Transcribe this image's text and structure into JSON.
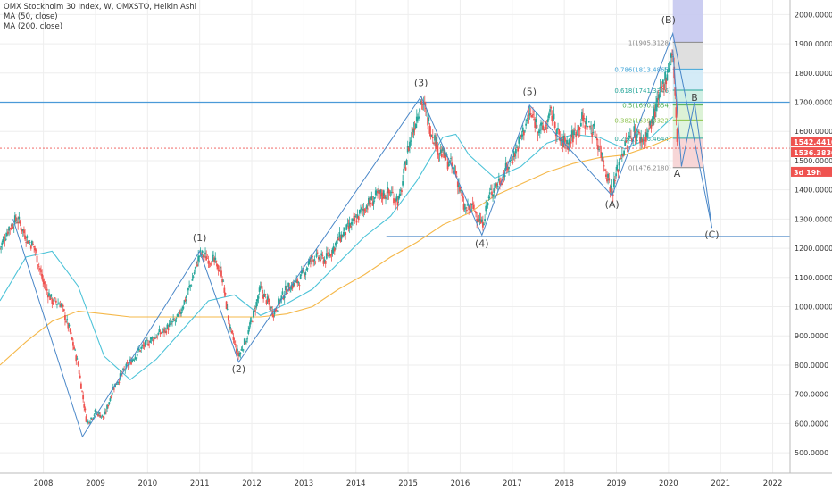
{
  "legend": {
    "title": "OMX Stockholm 30 Index, W, OMXSTO, Heikin Ashi",
    "ma50": "MA (50, close)",
    "ma200": "MA (200, close)"
  },
  "colors": {
    "up": "#26a69a",
    "down": "#ef5350",
    "ma50": "#4dc3d8",
    "ma200": "#f5b84a",
    "wave": "#4a87c8",
    "resistance": "#4a9ad8",
    "support": "#4a87c8",
    "price_line": "#ef5350",
    "axis_text": "#333333",
    "grid": "#eeeeee"
  },
  "chart_data": {
    "type": "candlestick",
    "xlim": [
      "2007-03",
      "2022-05"
    ],
    "ylim": [
      430,
      2050
    ],
    "x_ticks": [
      "2008",
      "2009",
      "2010",
      "2011",
      "2012",
      "2013",
      "2014",
      "2015",
      "2016",
      "2017",
      "2018",
      "2019",
      "2020",
      "2021",
      "2022"
    ],
    "y_ticks": [
      "500.0000",
      "600.0000",
      "700.0000",
      "800.0000",
      "900.0000",
      "1000.0000",
      "1100.0000",
      "1200.0000",
      "1300.0000",
      "1400.0000",
      "1500.0000",
      "1600.0000",
      "1700.0000",
      "1800.0000",
      "1900.0000",
      "2000.0000"
    ],
    "price_path": [
      {
        "x": "2007-03",
        "y": 1200
      },
      {
        "x": "2007-05",
        "y": 1270
      },
      {
        "x": "2007-07",
        "y": 1300
      },
      {
        "x": "2007-09",
        "y": 1240
      },
      {
        "x": "2007-11",
        "y": 1200
      },
      {
        "x": "2008-01",
        "y": 1080
      },
      {
        "x": "2008-03",
        "y": 1020
      },
      {
        "x": "2008-05",
        "y": 1010
      },
      {
        "x": "2008-07",
        "y": 920
      },
      {
        "x": "2008-09",
        "y": 800
      },
      {
        "x": "2008-11",
        "y": 600
      },
      {
        "x": "2009-01",
        "y": 640
      },
      {
        "x": "2009-03",
        "y": 620
      },
      {
        "x": "2009-05",
        "y": 720
      },
      {
        "x": "2009-08",
        "y": 790
      },
      {
        "x": "2009-11",
        "y": 850
      },
      {
        "x": "2010-02",
        "y": 890
      },
      {
        "x": "2010-05",
        "y": 920
      },
      {
        "x": "2010-08",
        "y": 960
      },
      {
        "x": "2010-11",
        "y": 1080
      },
      {
        "x": "2011-01",
        "y": 1180
      },
      {
        "x": "2011-04",
        "y": 1160
      },
      {
        "x": "2011-06",
        "y": 1120
      },
      {
        "x": "2011-08",
        "y": 920
      },
      {
        "x": "2011-10",
        "y": 830
      },
      {
        "x": "2011-12",
        "y": 900
      },
      {
        "x": "2012-03",
        "y": 1060
      },
      {
        "x": "2012-06",
        "y": 980
      },
      {
        "x": "2012-09",
        "y": 1060
      },
      {
        "x": "2012-12",
        "y": 1090
      },
      {
        "x": "2013-03",
        "y": 1170
      },
      {
        "x": "2013-06",
        "y": 1160
      },
      {
        "x": "2013-09",
        "y": 1230
      },
      {
        "x": "2013-12",
        "y": 1280
      },
      {
        "x": "2014-03",
        "y": 1340
      },
      {
        "x": "2014-06",
        "y": 1380
      },
      {
        "x": "2014-09",
        "y": 1390
      },
      {
        "x": "2014-11",
        "y": 1360
      },
      {
        "x": "2015-01",
        "y": 1540
      },
      {
        "x": "2015-04",
        "y": 1710
      },
      {
        "x": "2015-06",
        "y": 1620
      },
      {
        "x": "2015-08",
        "y": 1540
      },
      {
        "x": "2015-10",
        "y": 1500
      },
      {
        "x": "2015-12",
        "y": 1460
      },
      {
        "x": "2016-02",
        "y": 1330
      },
      {
        "x": "2016-04",
        "y": 1340
      },
      {
        "x": "2016-06",
        "y": 1280
      },
      {
        "x": "2016-08",
        "y": 1390
      },
      {
        "x": "2016-11",
        "y": 1450
      },
      {
        "x": "2017-02",
        "y": 1540
      },
      {
        "x": "2017-05",
        "y": 1660
      },
      {
        "x": "2017-08",
        "y": 1600
      },
      {
        "x": "2017-10",
        "y": 1660
      },
      {
        "x": "2017-12",
        "y": 1570
      },
      {
        "x": "2018-02",
        "y": 1560
      },
      {
        "x": "2018-05",
        "y": 1640
      },
      {
        "x": "2018-08",
        "y": 1600
      },
      {
        "x": "2018-10",
        "y": 1500
      },
      {
        "x": "2018-12",
        "y": 1390
      },
      {
        "x": "2019-02",
        "y": 1520
      },
      {
        "x": "2019-05",
        "y": 1600
      },
      {
        "x": "2019-07",
        "y": 1570
      },
      {
        "x": "2019-09",
        "y": 1620
      },
      {
        "x": "2019-11",
        "y": 1720
      },
      {
        "x": "2020-01",
        "y": 1820
      },
      {
        "x": "2020-02",
        "y": 1880
      },
      {
        "x": "2020-03",
        "y": 1560
      }
    ],
    "ma50_path": [
      {
        "x": "2007-03",
        "y": 1020
      },
      {
        "x": "2007-09",
        "y": 1170
      },
      {
        "x": "2008-03",
        "y": 1190
      },
      {
        "x": "2008-09",
        "y": 1070
      },
      {
        "x": "2009-03",
        "y": 830
      },
      {
        "x": "2009-09",
        "y": 750
      },
      {
        "x": "2010-03",
        "y": 820
      },
      {
        "x": "2010-09",
        "y": 920
      },
      {
        "x": "2011-03",
        "y": 1020
      },
      {
        "x": "2011-09",
        "y": 1040
      },
      {
        "x": "2012-03",
        "y": 970
      },
      {
        "x": "2012-09",
        "y": 1010
      },
      {
        "x": "2013-03",
        "y": 1060
      },
      {
        "x": "2013-09",
        "y": 1150
      },
      {
        "x": "2014-03",
        "y": 1240
      },
      {
        "x": "2014-09",
        "y": 1310
      },
      {
        "x": "2015-03",
        "y": 1430
      },
      {
        "x": "2015-09",
        "y": 1580
      },
      {
        "x": "2015-12",
        "y": 1590
      },
      {
        "x": "2016-03",
        "y": 1520
      },
      {
        "x": "2016-09",
        "y": 1440
      },
      {
        "x": "2017-03",
        "y": 1480
      },
      {
        "x": "2017-09",
        "y": 1560
      },
      {
        "x": "2018-03",
        "y": 1590
      },
      {
        "x": "2018-09",
        "y": 1580
      },
      {
        "x": "2019-03",
        "y": 1540
      },
      {
        "x": "2019-09",
        "y": 1580
      },
      {
        "x": "2020-02",
        "y": 1650
      }
    ],
    "ma200_path": [
      {
        "x": "2007-03",
        "y": 800
      },
      {
        "x": "2007-09",
        "y": 880
      },
      {
        "x": "2008-03",
        "y": 950
      },
      {
        "x": "2008-09",
        "y": 985
      },
      {
        "x": "2009-03",
        "y": 975
      },
      {
        "x": "2009-09",
        "y": 965
      },
      {
        "x": "2010-03",
        "y": 965
      },
      {
        "x": "2010-09",
        "y": 965
      },
      {
        "x": "2011-03",
        "y": 965
      },
      {
        "x": "2011-09",
        "y": 965
      },
      {
        "x": "2012-03",
        "y": 965
      },
      {
        "x": "2012-09",
        "y": 975
      },
      {
        "x": "2013-03",
        "y": 1000
      },
      {
        "x": "2013-09",
        "y": 1060
      },
      {
        "x": "2014-03",
        "y": 1110
      },
      {
        "x": "2014-09",
        "y": 1170
      },
      {
        "x": "2015-03",
        "y": 1220
      },
      {
        "x": "2015-09",
        "y": 1280
      },
      {
        "x": "2016-03",
        "y": 1320
      },
      {
        "x": "2016-09",
        "y": 1380
      },
      {
        "x": "2017-03",
        "y": 1420
      },
      {
        "x": "2017-09",
        "y": 1460
      },
      {
        "x": "2018-03",
        "y": 1490
      },
      {
        "x": "2018-09",
        "y": 1510
      },
      {
        "x": "2019-03",
        "y": 1520
      },
      {
        "x": "2019-09",
        "y": 1550
      },
      {
        "x": "2020-02",
        "y": 1580
      }
    ],
    "horizontal_lines": [
      {
        "name": "resistance",
        "y": 1700,
        "x_start": "2007-03",
        "x_end": "2022-05"
      },
      {
        "name": "support",
        "y": 1240,
        "x_start": "2014-08",
        "x_end": "2022-05"
      }
    ],
    "price_line": {
      "y": 1542.441
    },
    "price_labels": [
      {
        "text": "1542.4410",
        "y": 1542.441
      },
      {
        "text": "1536.3830",
        "y": 1536.383
      },
      {
        "text": "3d 19h",
        "y": 1500
      }
    ],
    "wave_path": [
      {
        "x": "2007-06",
        "y": 1300
      },
      {
        "x": "2008-10",
        "y": 555
      },
      {
        "x": "2011-01",
        "y": 1190
      },
      {
        "x": "2011-10",
        "y": 810
      },
      {
        "x": "2015-04",
        "y": 1720
      },
      {
        "x": "2016-06",
        "y": 1245
      },
      {
        "x": "2017-05",
        "y": 1690
      },
      {
        "x": "2018-12",
        "y": 1380
      },
      {
        "x": "2020-02",
        "y": 1935
      },
      {
        "x": "2020-11",
        "y": 1270
      }
    ],
    "projection_path": [
      {
        "x": "2020-02",
        "y": 1880
      },
      {
        "x": "2020-04",
        "y": 1480
      },
      {
        "x": "2020-07",
        "y": 1700
      },
      {
        "x": "2020-11",
        "y": 1270
      }
    ],
    "wave_labels": [
      {
        "text": "(1)",
        "x": "2011-01",
        "y": 1225
      },
      {
        "text": "(2)",
        "x": "2011-10",
        "y": 775
      },
      {
        "text": "(3)",
        "x": "2015-04",
        "y": 1755
      },
      {
        "text": "(4)",
        "x": "2016-06",
        "y": 1205
      },
      {
        "text": "(5)",
        "x": "2017-05",
        "y": 1725
      },
      {
        "text": "(A)",
        "x": "2018-12",
        "y": 1340
      },
      {
        "text": "(B)",
        "x": "2020-01",
        "y": 1970
      },
      {
        "text": "(C)",
        "x": "2020-11",
        "y": 1235
      },
      {
        "text": "A",
        "x": "2020-03",
        "y": 1445
      },
      {
        "text": "B",
        "x": "2020-07",
        "y": 1705
      }
    ],
    "fibonacci": {
      "x_start": "2020-02",
      "x_end": "2020-09",
      "levels": [
        {
          "label": "1(1905.3128)",
          "value": 1905.3128
        },
        {
          "label": "0.786(1813.4865)",
          "value": 1813.4865
        },
        {
          "label": "0.618(1741.3346)",
          "value": 1741.3346
        },
        {
          "label": "0.5(1690.3654)",
          "value": 1690.3654
        },
        {
          "label": "0.382(1639.3322)",
          "value": 1639.3322
        },
        {
          "label": "0.236(1576.4644)",
          "value": 1576.4644
        },
        {
          "label": "0(1476.2180)",
          "value": 1476.218
        }
      ]
    }
  }
}
